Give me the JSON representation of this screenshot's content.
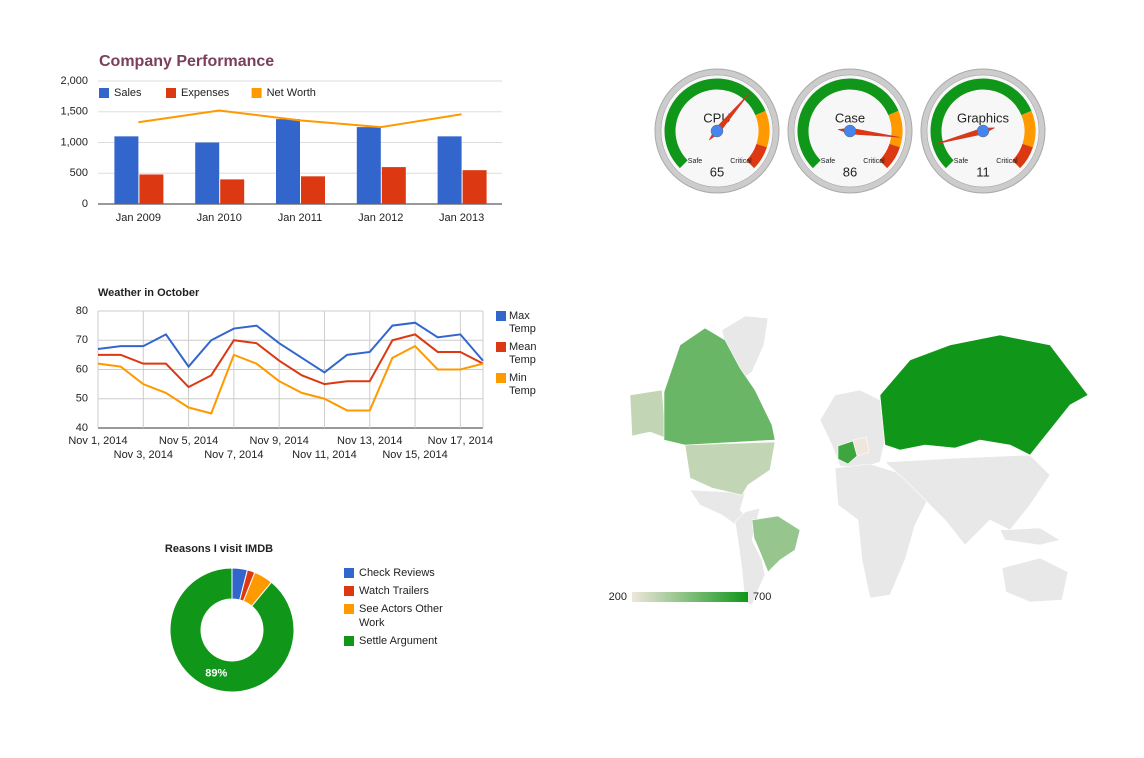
{
  "chart_data": [
    {
      "type": "combo",
      "title": "Company Performance",
      "categories": [
        "Jan 2009",
        "Jan 2010",
        "Jan 2011",
        "Jan 2012",
        "Jan 2013"
      ],
      "series": [
        {
          "name": "Sales",
          "color": "#3366cc",
          "type": "bar",
          "values": [
            1100,
            1000,
            1380,
            1250,
            1100
          ]
        },
        {
          "name": "Expenses",
          "color": "#dc3912",
          "type": "bar",
          "values": [
            480,
            400,
            450,
            600,
            550
          ]
        },
        {
          "name": "Net Worth",
          "color": "#ff9900",
          "type": "line",
          "values": [
            1330,
            1520,
            1360,
            1250,
            1460
          ]
        }
      ],
      "ylim": [
        0,
        2000
      ],
      "yticks": [
        0,
        500,
        {
          "value": 1000,
          "label": "1,000"
        },
        {
          "value": 1500,
          "label": "1,500"
        },
        {
          "value": 2000,
          "label": "2,000"
        }
      ],
      "grid": true,
      "legend": "top"
    },
    {
      "type": "gauge",
      "lim": [
        0,
        100
      ],
      "bands": [
        {
          "from": 0,
          "to": 75,
          "color": "#109618"
        },
        {
          "from": 75,
          "to": 90,
          "color": "#ff9900"
        },
        {
          "from": 90,
          "to": 100,
          "color": "#dc3912"
        }
      ],
      "tick_labels": [
        "Safe",
        "Critical"
      ],
      "gauges": [
        {
          "label": "CPU",
          "value": 65
        },
        {
          "label": "Case",
          "value": 86
        },
        {
          "label": "Graphics",
          "value": 11
        }
      ]
    },
    {
      "type": "line",
      "title": "Weather in October",
      "categories": [
        "Nov 1, 2014",
        null,
        "Nov 3, 2014",
        null,
        "Nov 5, 2014",
        null,
        "Nov 7, 2014",
        null,
        "Nov 9, 2014",
        null,
        "Nov 11, 2014",
        null,
        "Nov 13, 2014",
        null,
        "Nov 15, 2014",
        null,
        "Nov 17, 2014",
        null
      ],
      "series": [
        {
          "name": "Max Temp",
          "color": "#3366cc",
          "values": [
            67,
            68,
            68,
            72,
            61,
            70,
            74,
            75,
            69,
            64,
            59,
            65,
            66,
            75,
            76,
            71,
            72,
            63
          ]
        },
        {
          "name": "Mean Temp",
          "color": "#dc3912",
          "values": [
            65,
            65,
            62,
            62,
            54,
            58,
            70,
            69,
            63,
            58,
            55,
            56,
            56,
            70,
            72,
            66,
            66,
            62
          ]
        },
        {
          "name": "Min Temp",
          "color": "#ff9900",
          "values": [
            62,
            61,
            55,
            52,
            47,
            45,
            65,
            62,
            56,
            52,
            50,
            46,
            46,
            64,
            68,
            60,
            60,
            62
          ]
        }
      ],
      "ylim": [
        40,
        80
      ],
      "yticks": [
        40,
        50,
        60,
        70,
        80
      ],
      "grid": true,
      "legend": "right"
    },
    {
      "type": "pie",
      "title": "Reasons I visit IMDB",
      "hole": 0.5,
      "categories": [
        "Check Reviews",
        "Watch Trailers",
        "See Actors Other Work",
        "Settle Argument"
      ],
      "values": [
        4,
        2,
        5,
        89
      ],
      "value_labels": [
        null,
        null,
        null,
        "89%"
      ],
      "colors": [
        "#3366cc",
        "#dc3912",
        "#ff9900",
        "#109618"
      ],
      "legend": "right"
    },
    {
      "type": "geo",
      "values": [
        200,
        300,
        400,
        500,
        600,
        700
      ],
      "colorlim": [
        200,
        700
      ],
      "colors": [
        "#efe6dc",
        "#109618"
      ]
    }
  ]
}
